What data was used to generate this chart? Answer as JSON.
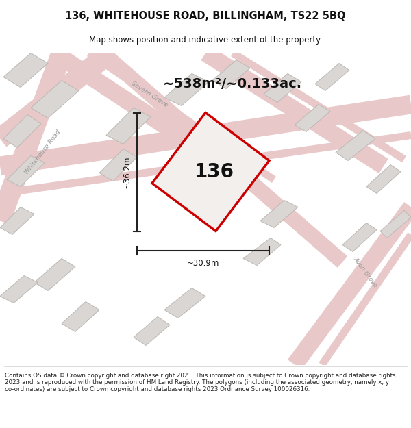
{
  "title_line1": "136, WHITEHOUSE ROAD, BILLINGHAM, TS22 5BQ",
  "title_line2": "Map shows position and indicative extent of the property.",
  "area_text": "~538m²/~0.133ac.",
  "property_number": "136",
  "dim_width": "~30.9m",
  "dim_height": "~36.2m",
  "footer_text": "Contains OS data © Crown copyright and database right 2021. This information is subject to Crown copyright and database rights 2023 and is reproduced with the permission of HM Land Registry. The polygons (including the associated geometry, namely x, y co-ordinates) are subject to Crown copyright and database rights 2023 Ordnance Survey 100026316.",
  "map_bg_color": "#f2efed",
  "road_color": "#e8c8c8",
  "road_fill_color": "#ecddd8",
  "building_color": "#d9d6d3",
  "building_edge_color": "#bbb8b4",
  "property_fill": "#f2efed",
  "property_edge_color": "#cc0000",
  "dim_line_color": "#222222",
  "title_color": "#111111",
  "street_label_color": "#999999",
  "footer_color": "#222222"
}
